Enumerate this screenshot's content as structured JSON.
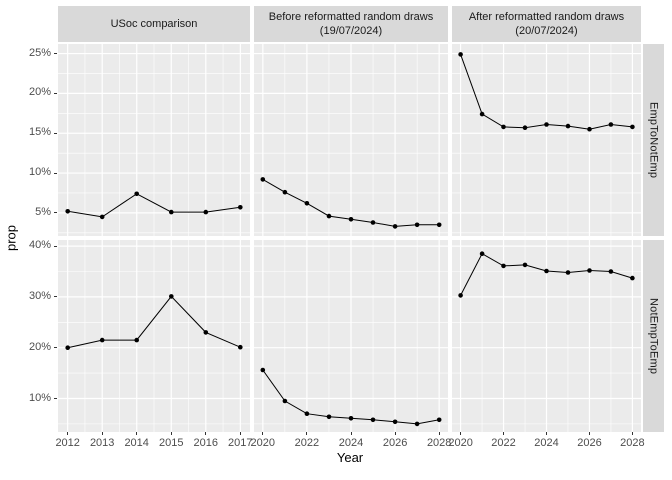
{
  "chart_data": {
    "type": "line",
    "title": "",
    "xlabel": "Year",
    "ylabel": "prop",
    "legend": "none",
    "grid": "white major and minor gridlines on grey panels",
    "col_facets": [
      "USoc comparison",
      "Before reformatted random draws\n(19/07/2024)",
      "After reformatted random draws\n(20/07/2024)"
    ],
    "row_facets": [
      "EmpToNotEmp",
      "NotEmpToEmp"
    ],
    "x_axis_by_col": [
      0,
      1,
      1
    ],
    "x_axes": [
      {
        "lim": [
          2011.72,
          2017.28
        ],
        "ticks": [
          2012,
          2013,
          2014,
          2015,
          2016,
          2017
        ],
        "labels": [
          "2012",
          "2013",
          "2014",
          "2015",
          "2016",
          "2017"
        ],
        "minor": [
          2012.5,
          2013.5,
          2014.5,
          2015.5,
          2016.5
        ]
      },
      {
        "lim": [
          2019.6,
          2028.4
        ],
        "ticks": [
          2020,
          2022,
          2024,
          2026,
          2028
        ],
        "labels": [
          "2020",
          "2022",
          "2024",
          "2026",
          "2028"
        ],
        "minor": [
          2021,
          2023,
          2025,
          2027
        ]
      }
    ],
    "y_axes": [
      {
        "facet": "EmpToNotEmp",
        "lim": [
          2.1,
          26.2
        ],
        "ticks": [
          5,
          10,
          15,
          20,
          25
        ],
        "labels": [
          "5%",
          "10%",
          "15%",
          "20%",
          "25%"
        ],
        "minor": [
          2.5,
          7.5,
          12.5,
          17.5,
          22.5
        ]
      },
      {
        "facet": "NotEmpToEmp",
        "lim": [
          3.4,
          41.2
        ],
        "ticks": [
          10,
          20,
          30,
          40
        ],
        "labels": [
          "10%",
          "20%",
          "30%",
          "40%"
        ],
        "minor": [
          5,
          15,
          25,
          35
        ]
      }
    ],
    "panels": [
      {
        "row": 0,
        "col": 0,
        "row_facet": "EmpToNotEmp",
        "col_facet": "USoc comparison",
        "x": [
          2012,
          2013,
          2014,
          2015,
          2016,
          2017
        ],
        "y": [
          5.2,
          4.5,
          7.4,
          5.1,
          5.1,
          5.7
        ]
      },
      {
        "row": 0,
        "col": 1,
        "row_facet": "EmpToNotEmp",
        "col_facet": "Before reformatted random draws (19/07/2024)",
        "x": [
          2020,
          2021,
          2022,
          2023,
          2024,
          2025,
          2026,
          2027,
          2028
        ],
        "y": [
          9.2,
          7.6,
          6.2,
          4.6,
          4.2,
          3.8,
          3.3,
          3.5,
          3.5
        ]
      },
      {
        "row": 0,
        "col": 2,
        "row_facet": "EmpToNotEmp",
        "col_facet": "After reformatted random draws (20/07/2024)",
        "x": [
          2020,
          2021,
          2022,
          2023,
          2024,
          2025,
          2026,
          2027,
          2028
        ],
        "y": [
          24.9,
          17.4,
          15.8,
          15.7,
          16.1,
          15.9,
          15.5,
          16.1,
          15.8
        ]
      },
      {
        "row": 1,
        "col": 0,
        "row_facet": "NotEmpToEmp",
        "col_facet": "USoc comparison",
        "x": [
          2012,
          2013,
          2014,
          2015,
          2016,
          2017
        ],
        "y": [
          20.0,
          21.5,
          21.5,
          30.1,
          23.0,
          20.1
        ]
      },
      {
        "row": 1,
        "col": 1,
        "row_facet": "NotEmpToEmp",
        "col_facet": "Before reformatted random draws (19/07/2024)",
        "x": [
          2020,
          2021,
          2022,
          2023,
          2024,
          2025,
          2026,
          2027,
          2028
        ],
        "y": [
          15.6,
          9.5,
          7.0,
          6.4,
          6.1,
          5.8,
          5.4,
          5.0,
          5.8
        ]
      },
      {
        "row": 1,
        "col": 2,
        "row_facet": "NotEmpToEmp",
        "col_facet": "After reformatted random draws (20/07/2024)",
        "x": [
          2020,
          2021,
          2022,
          2023,
          2024,
          2025,
          2026,
          2027,
          2028
        ],
        "y": [
          30.3,
          38.5,
          36.1,
          36.3,
          35.1,
          34.8,
          35.2,
          35.0,
          33.7
        ]
      }
    ],
    "colors": {
      "panel_bg": "#EBEBEB",
      "strip_bg": "#D9D9D9",
      "gridline": "#FFFFFF",
      "line": "#000000",
      "point": "#000000",
      "tick_label": "#4D4D4D",
      "strip_text": "#1A1A1A",
      "axis_title": "#000000",
      "tick_mark": "#333333"
    }
  }
}
